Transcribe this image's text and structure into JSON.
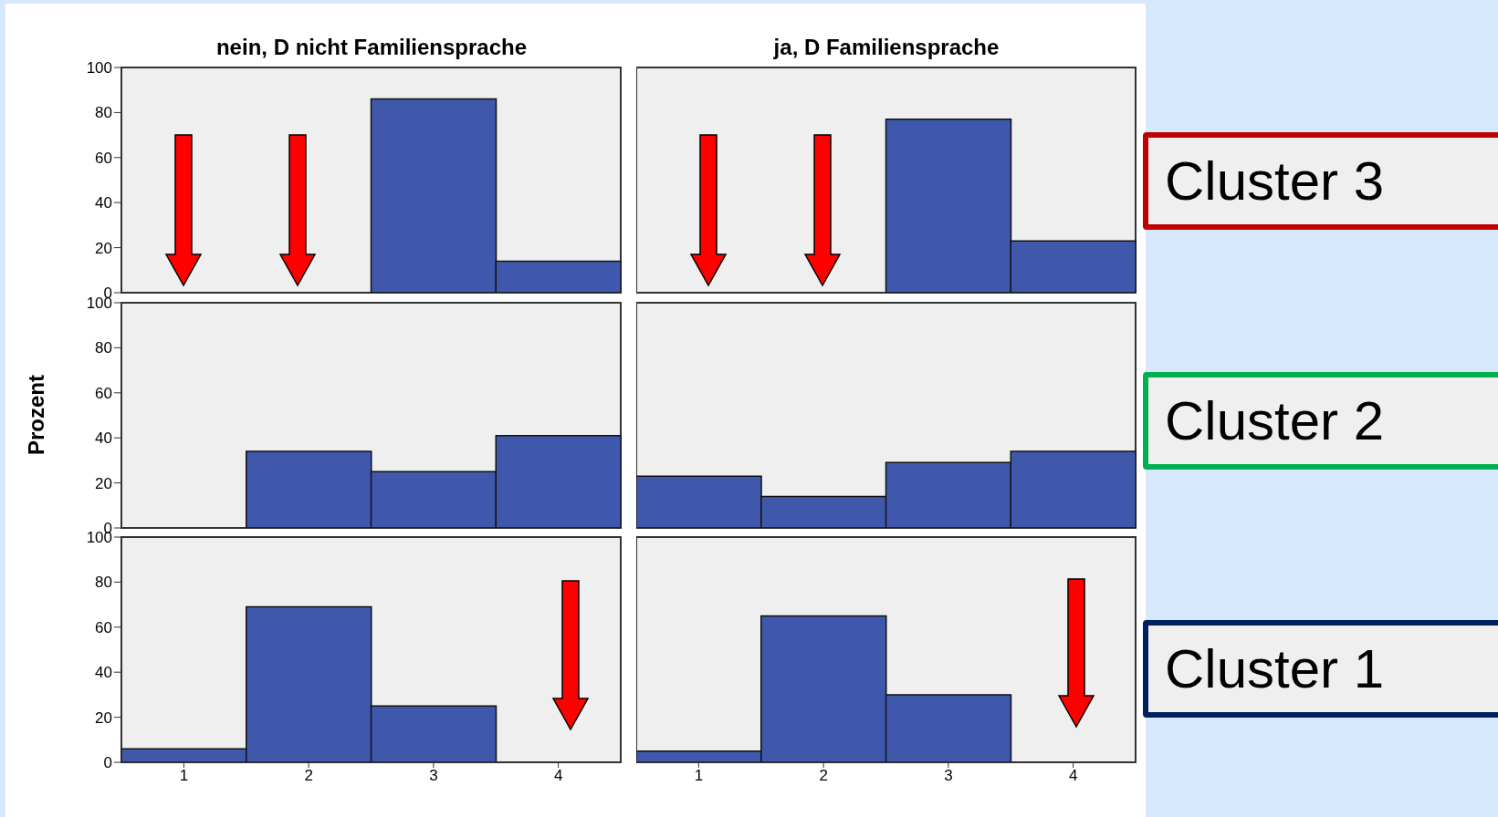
{
  "chart_data": [
    {
      "type": "bar",
      "title": "nein, D nicht Familiensprache",
      "categories": [
        "1",
        "2",
        "3",
        "4"
      ],
      "values": [
        0,
        0,
        86,
        14
      ],
      "color": "#3f58ab",
      "ylim": [
        0,
        100
      ],
      "yticks": [
        0,
        20,
        40,
        60,
        80,
        100
      ],
      "tick_labels": "y"
    },
    {
      "type": "bar",
      "title": "ja, D Familiensprache",
      "categories": [
        "1",
        "2",
        "3",
        "4"
      ],
      "values": [
        0,
        0,
        77,
        23
      ],
      "color": "#3f58ab",
      "ylim": [
        0,
        100
      ],
      "tick_labels": false,
      "annotations": [
        "Cluster 3"
      ]
    },
    {
      "type": "bar",
      "ylabel": "Prozent",
      "categories": [
        "1",
        "2",
        "3",
        "4"
      ],
      "values": [
        0,
        34,
        25,
        41
      ],
      "color": "#3f58ab",
      "ylim": [
        0,
        100
      ],
      "yticks": [
        0,
        20,
        40,
        60,
        80,
        100
      ],
      "tick_labels": "y"
    },
    {
      "type": "bar",
      "categories": [
        "1",
        "2",
        "3",
        "4"
      ],
      "values": [
        23,
        14,
        29,
        34
      ],
      "color": "#3f58ab",
      "ylim": [
        0,
        100
      ],
      "tick_labels": false,
      "annotations": [
        "Cluster 2"
      ]
    },
    {
      "type": "bar",
      "categories": [
        "1",
        "2",
        "3",
        "4"
      ],
      "values": [
        6,
        69,
        25,
        0
      ],
      "color": "#3f58ab",
      "ylim": [
        0,
        100
      ],
      "yticks": [
        0,
        20,
        40,
        60,
        80,
        100
      ]
    },
    {
      "type": "bar",
      "categories": [
        "1",
        "2",
        "3",
        "4"
      ],
      "values": [
        5,
        65,
        30,
        0
      ],
      "color": "#3f58ab",
      "ylim": [
        0,
        100
      ],
      "tick_labels": "x",
      "annotations": [
        "Cluster 1"
      ]
    }
  ]
}
